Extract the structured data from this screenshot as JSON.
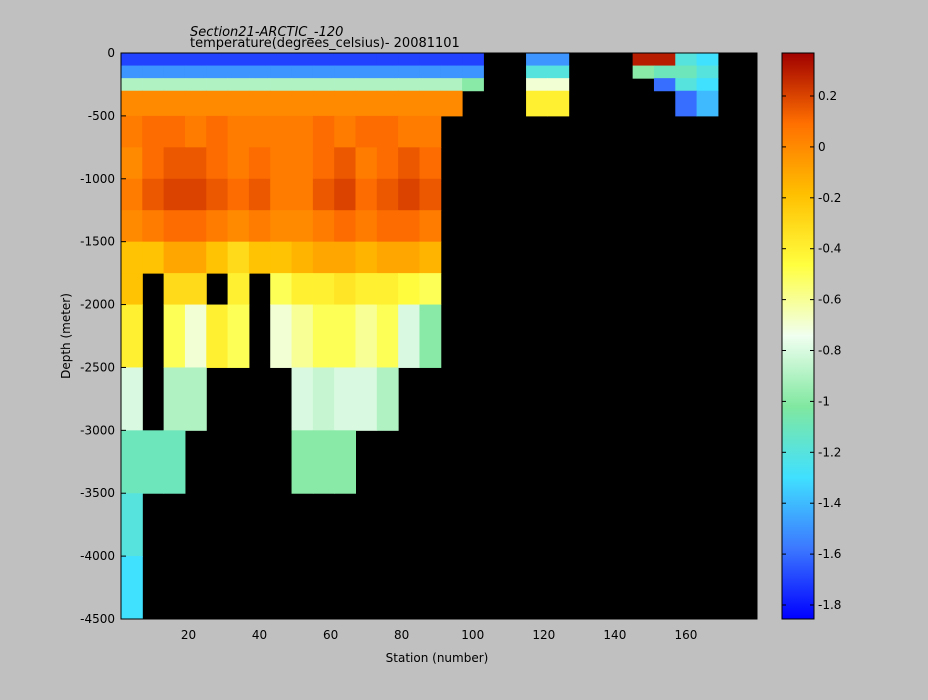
{
  "chart_data": {
    "type": "heatmap",
    "title": "Section21-ARCTIC_-120",
    "subtitle": "temperature(degrees_celsius)- 20081101",
    "xlabel": "Station (number)",
    "ylabel": "Depth (meter)",
    "x": [
      1,
      7,
      13,
      19,
      25,
      31,
      37,
      43,
      49,
      55,
      61,
      67,
      73,
      79,
      85,
      91,
      97,
      103,
      109,
      115,
      121,
      127,
      133,
      139,
      145,
      151,
      157,
      163,
      169,
      175,
      180
    ],
    "y": [
      0,
      -100,
      -200,
      -300,
      -500,
      -750,
      -1000,
      -1250,
      -1500,
      -1750,
      -2000,
      -2500,
      -3000,
      -3500,
      -4000,
      -4500
    ],
    "z": [
      [
        -1.7,
        -1.7,
        -1.7,
        -1.7,
        -1.7,
        -1.7,
        -1.7,
        -1.7,
        -1.7,
        -1.7,
        -1.7,
        -1.7,
        -1.7,
        -1.7,
        -1.7,
        -1.7,
        -1.7,
        null,
        null,
        -1.5,
        -1.5,
        null,
        null,
        null,
        0.3,
        0.3,
        -1.2,
        -1.3,
        null,
        null
      ],
      [
        -1.5,
        -1.5,
        -1.5,
        -1.5,
        -1.5,
        -1.5,
        -1.5,
        -1.5,
        -1.5,
        -1.5,
        -1.5,
        -1.5,
        -1.5,
        -1.5,
        -1.5,
        -1.5,
        -1.5,
        null,
        null,
        -1.2,
        -1.2,
        null,
        null,
        null,
        -1.0,
        -1.1,
        -1.1,
        -1.2,
        null,
        null
      ],
      [
        -0.9,
        -0.9,
        -0.9,
        -0.9,
        -0.9,
        -0.9,
        -0.9,
        -0.9,
        -0.9,
        -0.9,
        -0.9,
        -0.9,
        -0.9,
        -0.9,
        -0.9,
        -0.9,
        -1.0,
        null,
        null,
        -0.7,
        -0.7,
        null,
        null,
        null,
        null,
        -1.6,
        -1.2,
        -1.3,
        null,
        null
      ],
      [
        0.0,
        0.0,
        0.0,
        0.0,
        0.0,
        0.0,
        0.0,
        0.0,
        0.0,
        0.0,
        0.0,
        0.0,
        0.0,
        0.0,
        0.0,
        0.0,
        null,
        null,
        null,
        -0.4,
        -0.4,
        null,
        null,
        null,
        null,
        null,
        -1.6,
        -1.4,
        null,
        null
      ],
      [
        0.05,
        0.1,
        0.1,
        0.05,
        0.1,
        0.05,
        0.05,
        0.05,
        0.05,
        0.1,
        0.05,
        0.1,
        0.1,
        0.05,
        0.05,
        null,
        null,
        null,
        null,
        null,
        null,
        null,
        null,
        null,
        null,
        null,
        null,
        null,
        null,
        null
      ],
      [
        0.0,
        0.1,
        0.15,
        0.15,
        0.1,
        0.05,
        0.1,
        0.05,
        0.05,
        0.1,
        0.15,
        0.05,
        0.1,
        0.15,
        0.1,
        null,
        null,
        null,
        null,
        null,
        null,
        null,
        null,
        null,
        null,
        null,
        null,
        null,
        null,
        null
      ],
      [
        0.05,
        0.15,
        0.2,
        0.2,
        0.15,
        0.1,
        0.15,
        0.05,
        0.05,
        0.15,
        0.2,
        0.1,
        0.15,
        0.2,
        0.15,
        null,
        null,
        null,
        null,
        null,
        null,
        null,
        null,
        null,
        null,
        null,
        null,
        null,
        null,
        null
      ],
      [
        0.0,
        0.05,
        0.1,
        0.1,
        0.05,
        0.0,
        0.05,
        0.0,
        0.0,
        0.05,
        0.1,
        0.05,
        0.1,
        0.1,
        0.05,
        null,
        null,
        null,
        null,
        null,
        null,
        null,
        null,
        null,
        null,
        null,
        null,
        null,
        null,
        null
      ],
      [
        -0.2,
        -0.2,
        -0.1,
        -0.1,
        -0.2,
        -0.3,
        -0.2,
        -0.2,
        -0.15,
        -0.1,
        -0.1,
        -0.15,
        -0.1,
        -0.1,
        -0.15,
        null,
        null,
        null,
        null,
        null,
        null,
        null,
        null,
        null,
        null,
        null,
        null,
        null,
        null,
        null
      ],
      [
        -0.2,
        null,
        -0.3,
        -0.3,
        null,
        -0.4,
        null,
        -0.5,
        -0.4,
        -0.4,
        -0.35,
        -0.4,
        -0.4,
        -0.45,
        -0.5,
        null,
        null,
        null,
        null,
        null,
        null,
        null,
        null,
        null,
        null,
        null,
        null,
        null,
        null,
        null
      ],
      [
        -0.4,
        null,
        -0.5,
        -0.7,
        -0.4,
        -0.5,
        null,
        -0.7,
        -0.6,
        -0.5,
        -0.5,
        -0.6,
        -0.5,
        -0.8,
        -1.0,
        null,
        null,
        null,
        null,
        null,
        null,
        null,
        null,
        null,
        null,
        null,
        null,
        null,
        null,
        null
      ],
      [
        -0.8,
        null,
        -0.9,
        -0.9,
        null,
        null,
        null,
        null,
        -0.8,
        -0.85,
        -0.8,
        -0.8,
        -0.9,
        null,
        null,
        null,
        null,
        null,
        null,
        null,
        null,
        null,
        null,
        null,
        null,
        null,
        null,
        null,
        null,
        null
      ],
      [
        -1.1,
        -1.1,
        -1.1,
        null,
        null,
        null,
        null,
        null,
        -1.0,
        -1.0,
        -1.0,
        null,
        null,
        null,
        null,
        null,
        null,
        null,
        null,
        null,
        null,
        null,
        null,
        null,
        null,
        null,
        null,
        null,
        null,
        null
      ],
      [
        -1.2,
        null,
        null,
        null,
        null,
        null,
        null,
        null,
        null,
        null,
        null,
        null,
        null,
        null,
        null,
        null,
        null,
        null,
        null,
        null,
        null,
        null,
        null,
        null,
        null,
        null,
        null,
        null,
        null,
        null
      ],
      [
        -1.3,
        null,
        null,
        null,
        null,
        null,
        null,
        null,
        null,
        null,
        null,
        null,
        null,
        null,
        null,
        null,
        null,
        null,
        null,
        null,
        null,
        null,
        null,
        null,
        null,
        null,
        null,
        null,
        null,
        null
      ]
    ],
    "xlim": [
      1,
      180
    ],
    "ylim": [
      -4500,
      0
    ],
    "xticks": [
      20,
      40,
      60,
      80,
      100,
      120,
      140,
      160
    ],
    "yticks": [
      0,
      -500,
      -1000,
      -1500,
      -2000,
      -2500,
      -3000,
      -3500,
      -4000,
      -4500
    ],
    "clim": [
      -1.855,
      0.369
    ],
    "cticks": [
      0.2,
      0,
      -0.2,
      -0.4,
      -0.6,
      -0.8,
      -1,
      -1.2,
      -1.4,
      -1.6,
      -1.8
    ],
    "colormap": [
      "#0000ff",
      "#3c78ff",
      "#40e0ff",
      "#80e8a0",
      "#f0fff0",
      "#ffff40",
      "#ffc000",
      "#ff7000",
      "#a00000"
    ],
    "missing_color": "#000000"
  }
}
